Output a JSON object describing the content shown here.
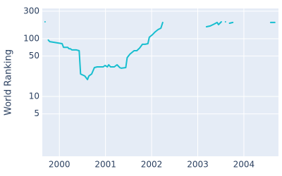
{
  "chart_data": {
    "type": "line",
    "y_label": "World Ranking",
    "log_y": true,
    "grid": true,
    "color": "#17becf",
    "x": [
      1999.69,
      null,
      1999.76,
      1999.79,
      2000.06,
      2000.09,
      2000.18,
      2000.21,
      2000.24,
      2000.27,
      2000.37,
      2000.43,
      2000.46,
      2000.55,
      2000.61,
      2000.64,
      2000.7,
      2000.76,
      2000.82,
      2000.95,
      2000.99,
      2001.04,
      2001.07,
      2001.11,
      2001.19,
      2001.25,
      2001.31,
      2001.34,
      2001.44,
      2001.47,
      2001.53,
      2001.62,
      2001.68,
      2001.74,
      2001.8,
      2001.86,
      2001.92,
      2001.95,
      2002.02,
      2002.08,
      2002.14,
      2002.2,
      2002.24,
      null,
      2003.19,
      2003.27,
      2003.36,
      2003.42,
      2003.45,
      2003.51,
      null,
      2003.6,
      null,
      2003.69,
      2003.76,
      null,
      2004.58,
      2004.67
    ],
    "series": [
      {
        "name": "World Ranking",
        "color": "#17becf",
        "values": [
          196,
          null,
          95,
          89,
          82,
          71,
          71,
          67,
          67,
          64,
          64,
          62,
          24.5,
          22.6,
          19.6,
          22.6,
          24.5,
          31.6,
          32.5,
          32.5,
          34.4,
          32.5,
          35.4,
          32.5,
          32.5,
          35.4,
          31.6,
          30.8,
          31.6,
          46.9,
          54,
          62,
          62,
          69,
          80,
          80,
          82,
          106,
          118,
          132,
          144,
          152,
          191,
          null,
          161,
          166,
          180,
          191,
          175,
          196,
          null,
          196,
          null,
          185,
          191,
          null,
          191,
          191
        ]
      }
    ],
    "xlim": [
      1999.63,
      2004.75
    ],
    "xticks": [
      2000,
      2001,
      2002,
      2003,
      2004
    ],
    "ylim": [
      0.92,
      334
    ],
    "yticks": [
      5,
      10,
      50,
      100,
      300
    ]
  }
}
